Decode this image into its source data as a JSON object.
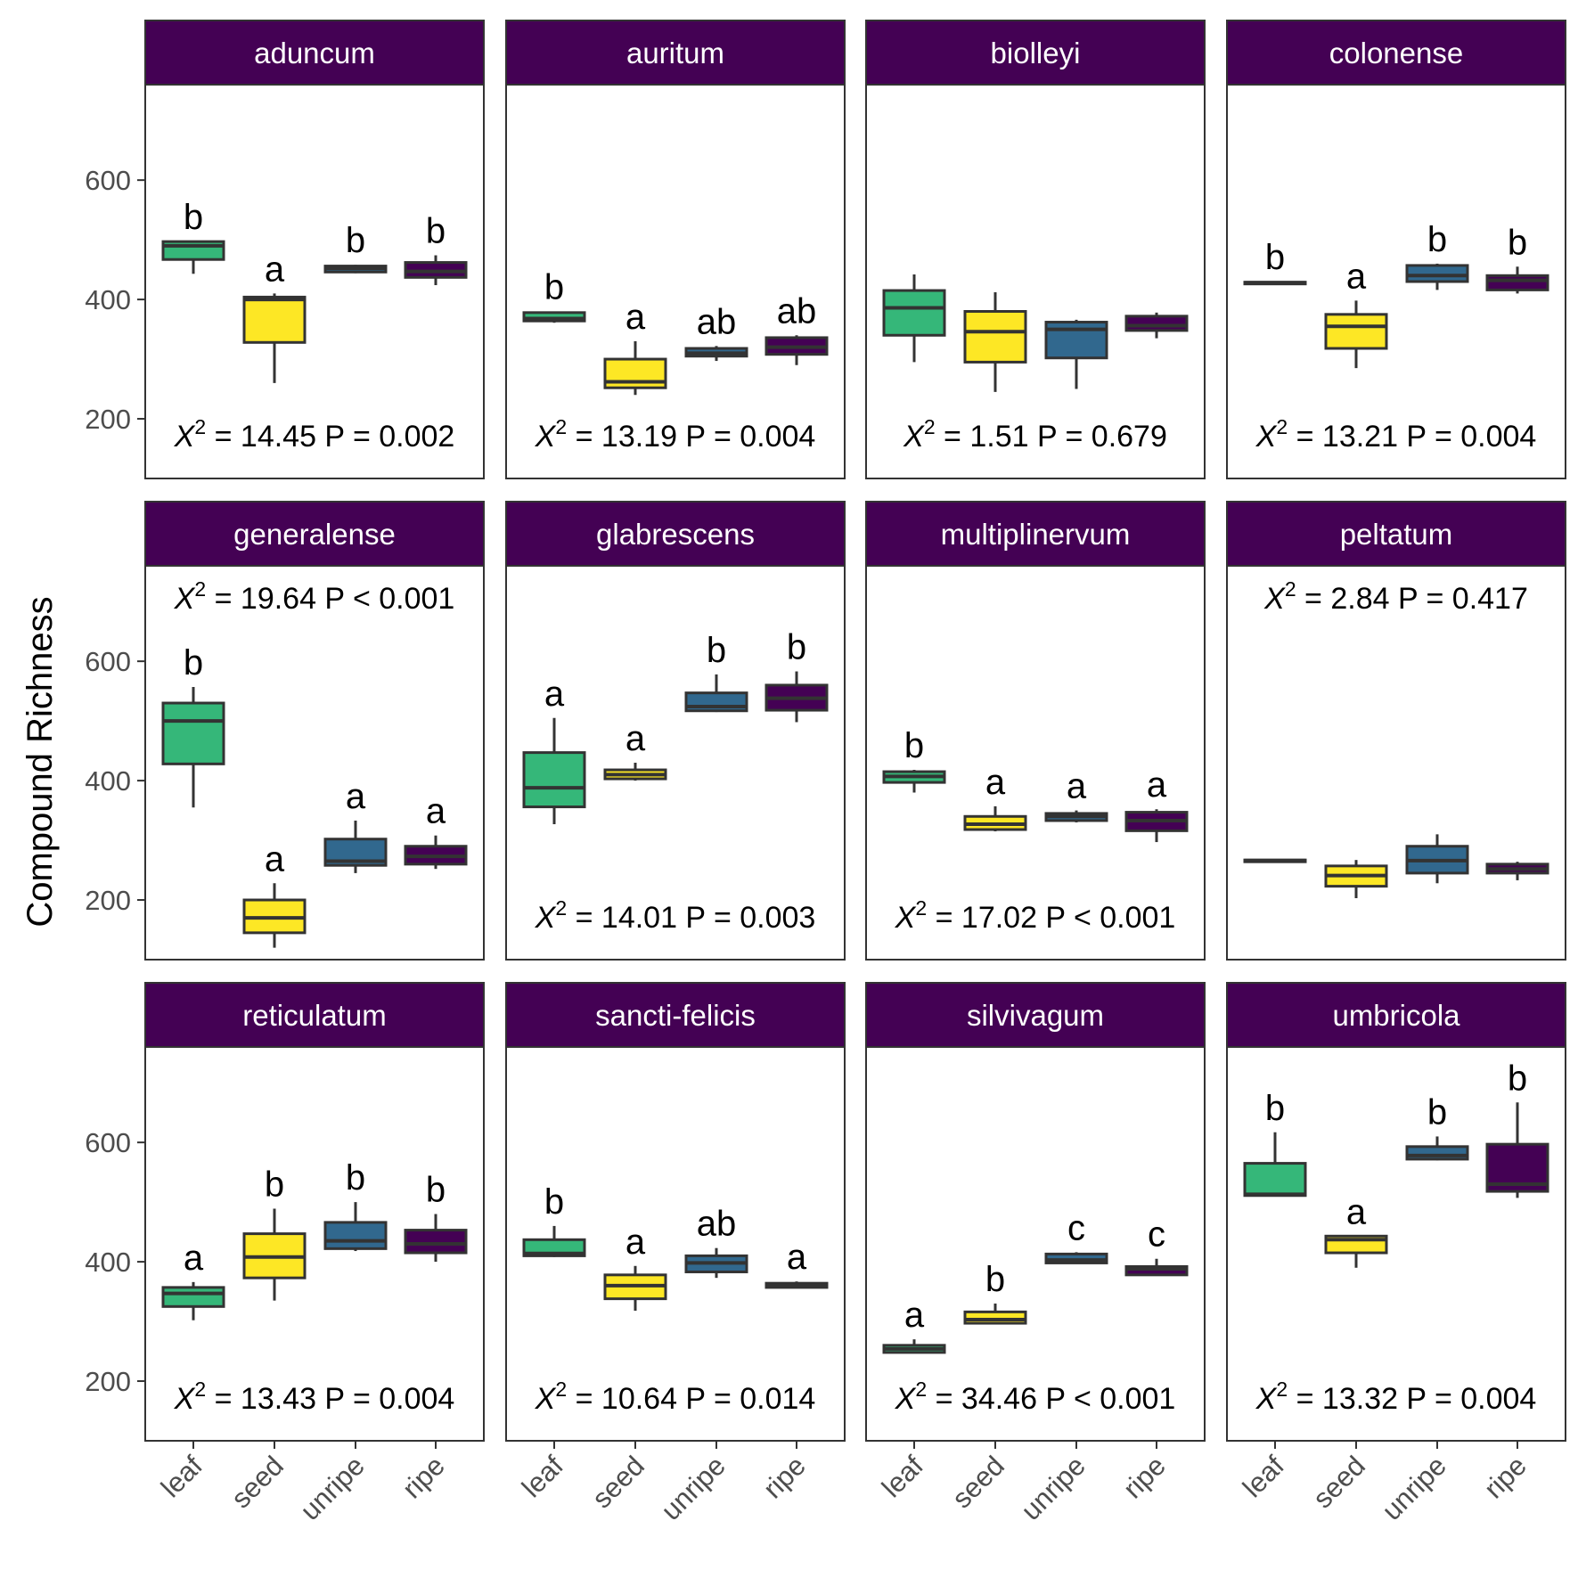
{
  "chart_data": {
    "type": "box",
    "ylabel": "Compound Richness",
    "xlabel": "",
    "categories": [
      "leaf",
      "seed",
      "unripe",
      "ripe"
    ],
    "colors": {
      "leaf": "#35b779",
      "seed": "#fde725",
      "unripe": "#31688e",
      "ripe": "#440154",
      "strip": "#440154",
      "outline": "#333333"
    },
    "ylim": [
      100,
      760
    ],
    "yticks": [
      200,
      400,
      600
    ],
    "stat_prefix": "X",
    "stat_sup": "2",
    "panels": [
      {
        "name": "aduncum",
        "stat": "= 14.45 P = 0.002",
        "stat_pos": "bottom",
        "boxes": [
          {
            "min": 443,
            "q1": 467,
            "median": 490,
            "q3": 497,
            "max": 497,
            "letter": "b"
          },
          {
            "min": 260,
            "q1": 328,
            "median": 400,
            "q3": 404,
            "max": 410,
            "letter": "a"
          },
          {
            "min": 444,
            "q1": 446,
            "median": 452,
            "q3": 456,
            "max": 458,
            "letter": "b"
          },
          {
            "min": 424,
            "q1": 437,
            "median": 447,
            "q3": 462,
            "max": 474,
            "letter": "b"
          }
        ]
      },
      {
        "name": "auritum",
        "stat": "= 13.19 P = 0.004",
        "stat_pos": "bottom",
        "boxes": [
          {
            "min": 361,
            "q1": 364,
            "median": 368,
            "q3": 378,
            "max": 380,
            "letter": "b"
          },
          {
            "min": 240,
            "q1": 252,
            "median": 262,
            "q3": 300,
            "max": 330,
            "letter": "a"
          },
          {
            "min": 297,
            "q1": 305,
            "median": 310,
            "q3": 318,
            "max": 322,
            "letter": "ab"
          },
          {
            "min": 290,
            "q1": 308,
            "median": 320,
            "q3": 336,
            "max": 340,
            "letter": "ab"
          }
        ]
      },
      {
        "name": "biolleyi",
        "stat": "= 1.51 P = 0.679",
        "stat_pos": "bottom",
        "boxes": [
          {
            "min": 295,
            "q1": 340,
            "median": 386,
            "q3": 415,
            "max": 442,
            "letter": ""
          },
          {
            "min": 245,
            "q1": 295,
            "median": 346,
            "q3": 380,
            "max": 412,
            "letter": ""
          },
          {
            "min": 250,
            "q1": 302,
            "median": 350,
            "q3": 362,
            "max": 366,
            "letter": ""
          },
          {
            "min": 335,
            "q1": 348,
            "median": 356,
            "q3": 372,
            "max": 378,
            "letter": ""
          }
        ]
      },
      {
        "name": "colonense",
        "stat": "= 13.21 P = 0.004",
        "stat_pos": "bottom",
        "boxes": [
          {
            "min": 426,
            "q1": 427,
            "median": 428,
            "q3": 429,
            "max": 430,
            "letter": "b"
          },
          {
            "min": 285,
            "q1": 318,
            "median": 355,
            "q3": 375,
            "max": 398,
            "letter": "a"
          },
          {
            "min": 416,
            "q1": 430,
            "median": 440,
            "q3": 457,
            "max": 460,
            "letter": "b"
          },
          {
            "min": 410,
            "q1": 416,
            "median": 432,
            "q3": 440,
            "max": 455,
            "letter": "b"
          }
        ]
      },
      {
        "name": "generalense",
        "stat": "= 19.64 P < 0.001",
        "stat_pos": "top",
        "boxes": [
          {
            "min": 355,
            "q1": 428,
            "median": 500,
            "q3": 530,
            "max": 557,
            "letter": "b"
          },
          {
            "min": 120,
            "q1": 145,
            "median": 170,
            "q3": 200,
            "max": 228,
            "letter": "a"
          },
          {
            "min": 245,
            "q1": 258,
            "median": 265,
            "q3": 302,
            "max": 333,
            "letter": "a"
          },
          {
            "min": 252,
            "q1": 260,
            "median": 273,
            "q3": 290,
            "max": 308,
            "letter": "a"
          }
        ]
      },
      {
        "name": "glabrescens",
        "stat": "= 14.01 P = 0.003",
        "stat_pos": "bottom",
        "boxes": [
          {
            "min": 327,
            "q1": 356,
            "median": 388,
            "q3": 447,
            "max": 505,
            "letter": "a"
          },
          {
            "min": 400,
            "q1": 403,
            "median": 410,
            "q3": 418,
            "max": 430,
            "letter": "a"
          },
          {
            "min": 515,
            "q1": 517,
            "median": 524,
            "q3": 547,
            "max": 578,
            "letter": "b"
          },
          {
            "min": 498,
            "q1": 518,
            "median": 538,
            "q3": 560,
            "max": 583,
            "letter": "b"
          }
        ]
      },
      {
        "name": "multiplinervum",
        "stat": "= 17.02 P < 0.001",
        "stat_pos": "bottom",
        "boxes": [
          {
            "min": 380,
            "q1": 397,
            "median": 407,
            "q3": 415,
            "max": 418,
            "letter": "b"
          },
          {
            "min": 315,
            "q1": 318,
            "median": 327,
            "q3": 340,
            "max": 357,
            "letter": "a"
          },
          {
            "min": 330,
            "q1": 333,
            "median": 340,
            "q3": 345,
            "max": 350,
            "letter": "a"
          },
          {
            "min": 297,
            "q1": 316,
            "median": 333,
            "q3": 347,
            "max": 352,
            "letter": "a"
          }
        ]
      },
      {
        "name": "peltatum",
        "stat": "= 2.84 P = 0.417",
        "stat_pos": "top",
        "boxes": [
          {
            "min": 264,
            "q1": 265,
            "median": 266,
            "q3": 267,
            "max": 268,
            "letter": ""
          },
          {
            "min": 203,
            "q1": 223,
            "median": 241,
            "q3": 257,
            "max": 267,
            "letter": ""
          },
          {
            "min": 228,
            "q1": 245,
            "median": 266,
            "q3": 290,
            "max": 310,
            "letter": ""
          },
          {
            "min": 233,
            "q1": 245,
            "median": 252,
            "q3": 260,
            "max": 264,
            "letter": ""
          }
        ]
      },
      {
        "name": "reticulatum",
        "stat": "= 13.43 P = 0.004",
        "stat_pos": "bottom",
        "boxes": [
          {
            "min": 302,
            "q1": 325,
            "median": 347,
            "q3": 357,
            "max": 366,
            "letter": "a"
          },
          {
            "min": 335,
            "q1": 373,
            "median": 408,
            "q3": 447,
            "max": 489,
            "letter": "b"
          },
          {
            "min": 418,
            "q1": 422,
            "median": 435,
            "q3": 466,
            "max": 500,
            "letter": "b"
          },
          {
            "min": 400,
            "q1": 415,
            "median": 430,
            "q3": 453,
            "max": 480,
            "letter": "b"
          }
        ]
      },
      {
        "name": "sancti-felicis",
        "stat": "= 10.64 P = 0.014",
        "stat_pos": "bottom",
        "boxes": [
          {
            "min": 408,
            "q1": 410,
            "median": 414,
            "q3": 437,
            "max": 460,
            "letter": "b"
          },
          {
            "min": 318,
            "q1": 338,
            "median": 360,
            "q3": 378,
            "max": 393,
            "letter": "a"
          },
          {
            "min": 373,
            "q1": 383,
            "median": 398,
            "q3": 410,
            "max": 423,
            "letter": "ab"
          },
          {
            "min": 356,
            "q1": 357,
            "median": 360,
            "q3": 364,
            "max": 367,
            "letter": "a"
          }
        ]
      },
      {
        "name": "silvivagum",
        "stat": "= 34.46 P < 0.001",
        "stat_pos": "bottom",
        "boxes": [
          {
            "min": 247,
            "q1": 248,
            "median": 254,
            "q3": 260,
            "max": 270,
            "letter": "a"
          },
          {
            "min": 295,
            "q1": 297,
            "median": 303,
            "q3": 316,
            "max": 330,
            "letter": "b"
          },
          {
            "min": 397,
            "q1": 398,
            "median": 403,
            "q3": 413,
            "max": 416,
            "letter": "c"
          },
          {
            "min": 377,
            "q1": 378,
            "median": 388,
            "q3": 392,
            "max": 405,
            "letter": "c"
          }
        ]
      },
      {
        "name": "umbricola",
        "stat": "= 13.32 P = 0.004",
        "stat_pos": "bottom",
        "boxes": [
          {
            "min": 510,
            "q1": 511,
            "median": 513,
            "q3": 565,
            "max": 617,
            "letter": "b"
          },
          {
            "min": 390,
            "q1": 415,
            "median": 437,
            "q3": 443,
            "max": 443,
            "letter": "a"
          },
          {
            "min": 570,
            "q1": 572,
            "median": 578,
            "q3": 593,
            "max": 610,
            "letter": "b"
          },
          {
            "min": 507,
            "q1": 518,
            "median": 530,
            "q3": 597,
            "max": 667,
            "letter": "b"
          }
        ]
      }
    ]
  }
}
